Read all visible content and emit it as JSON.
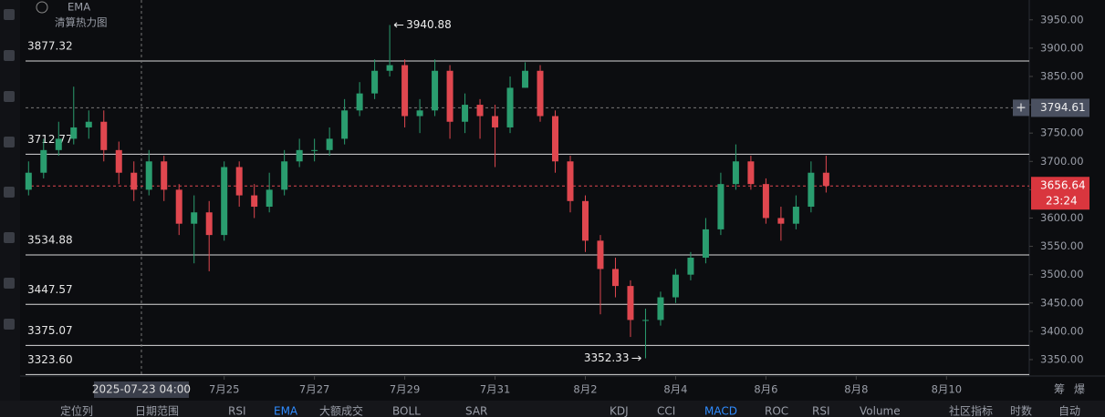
{
  "indicator_label": "EMA",
  "heatmap_label": "清算热力图",
  "chart_data": {
    "type": "candlestick",
    "open": [
      3650,
      3680,
      3720,
      3740,
      3760,
      3770,
      3720,
      3680,
      3650,
      3700,
      3650,
      3590,
      3610,
      3570,
      3690,
      3640,
      3620,
      3650,
      3700,
      3720,
      3720,
      3740,
      3790,
      3820,
      3860,
      3870,
      3780,
      3790,
      3860,
      3770,
      3800,
      3780,
      3760,
      3830,
      3860,
      3780,
      3700,
      3630,
      3560,
      3510,
      3480,
      3420,
      3420,
      3460,
      3500,
      3530,
      3580,
      3660,
      3700,
      3660,
      3600,
      3590,
      3620,
      3680
    ],
    "high": [
      3700,
      3740,
      3770,
      3832,
      3790,
      3790,
      3735,
      3700,
      3720,
      3710,
      3660,
      3640,
      3630,
      3700,
      3700,
      3660,
      3680,
      3720,
      3740,
      3740,
      3760,
      3810,
      3840,
      3880,
      3940.88,
      3880,
      3810,
      3880,
      3870,
      3820,
      3810,
      3800,
      3850,
      3875,
      3870,
      3790,
      3710,
      3640,
      3570,
      3530,
      3490,
      3440,
      3470,
      3510,
      3540,
      3600,
      3680,
      3730,
      3710,
      3670,
      3620,
      3640,
      3700,
      3710
    ],
    "low": [
      3640,
      3670,
      3710,
      3730,
      3740,
      3700,
      3660,
      3630,
      3640,
      3630,
      3570,
      3520,
      3506,
      3560,
      3620,
      3600,
      3610,
      3640,
      3690,
      3700,
      3710,
      3730,
      3780,
      3810,
      3850,
      3760,
      3750,
      3780,
      3740,
      3750,
      3740,
      3690,
      3750,
      3830,
      3770,
      3680,
      3610,
      3540,
      3430,
      3460,
      3390,
      3352.33,
      3410,
      3450,
      3490,
      3520,
      3570,
      3650,
      3650,
      3590,
      3560,
      3580,
      3610,
      3645
    ],
    "close": [
      3680,
      3720,
      3740,
      3760,
      3770,
      3720,
      3680,
      3650,
      3700,
      3650,
      3590,
      3610,
      3570,
      3690,
      3640,
      3620,
      3650,
      3700,
      3720,
      3720,
      3740,
      3790,
      3820,
      3860,
      3870,
      3780,
      3790,
      3860,
      3770,
      3800,
      3780,
      3760,
      3830,
      3860,
      3780,
      3700,
      3630,
      3560,
      3510,
      3480,
      3420,
      3420,
      3460,
      3500,
      3530,
      3580,
      3660,
      3700,
      3660,
      3600,
      3590,
      3620,
      3680,
      3656.64
    ],
    "up_color": "#2a9d6f",
    "down_color": "#e0474f",
    "xlim": [
      -0.2,
      66.5
    ],
    "ylim": [
      3321,
      3985
    ],
    "xticks": [
      {
        "value": 13,
        "label": "7月25"
      },
      {
        "value": 19,
        "label": "7月27"
      },
      {
        "value": 25,
        "label": "7月29"
      },
      {
        "value": 31,
        "label": "7月31"
      },
      {
        "value": 37,
        "label": "8月2"
      },
      {
        "value": 43,
        "label": "8月4"
      },
      {
        "value": 49,
        "label": "8月6"
      },
      {
        "value": 55,
        "label": "8月8"
      },
      {
        "value": 61,
        "label": "8月10"
      }
    ],
    "yticks": [
      {
        "value": 3350,
        "label": "3350.00"
      },
      {
        "value": 3400,
        "label": "3400.00"
      },
      {
        "value": 3450,
        "label": "3450.00"
      },
      {
        "value": 3500,
        "label": "3500.00"
      },
      {
        "value": 3550,
        "label": "3550.00"
      },
      {
        "value": 3600,
        "label": "3600.00"
      },
      {
        "value": 3650,
        "label": "3650.00"
      },
      {
        "value": 3700,
        "label": "3700.00"
      },
      {
        "value": 3750,
        "label": "3750.00"
      },
      {
        "value": 3800,
        "label": "3800.00"
      },
      {
        "value": 3850,
        "label": "3850.00"
      },
      {
        "value": 3900,
        "label": "3900.00"
      },
      {
        "value": 3950,
        "label": "3950.00"
      }
    ],
    "levels": [
      3877.32,
      3712.77,
      3534.88,
      3447.57,
      3375.07,
      {
        "value": 3323.6,
        "label": "3323.60"
      }
    ],
    "crosshair": {
      "x": 7.5,
      "x_label": "2025-07-23 04:00",
      "y": 3794.61
    },
    "high_marker_index": 24,
    "low_marker_index": 41,
    "countdown": "23:24"
  },
  "toolbar": {
    "left": [
      "定位列",
      "日期范围"
    ],
    "indicators": [
      "RSI",
      "EMA",
      "大额成交",
      "BOLL",
      "SAR"
    ],
    "sub_indicators": [
      "KDJ",
      "CCI",
      "MACD",
      "ROC",
      "RSI",
      "Volume"
    ],
    "right": [
      "社区指标",
      "时数",
      "自动"
    ],
    "side": [
      "筹",
      "爆"
    ]
  }
}
